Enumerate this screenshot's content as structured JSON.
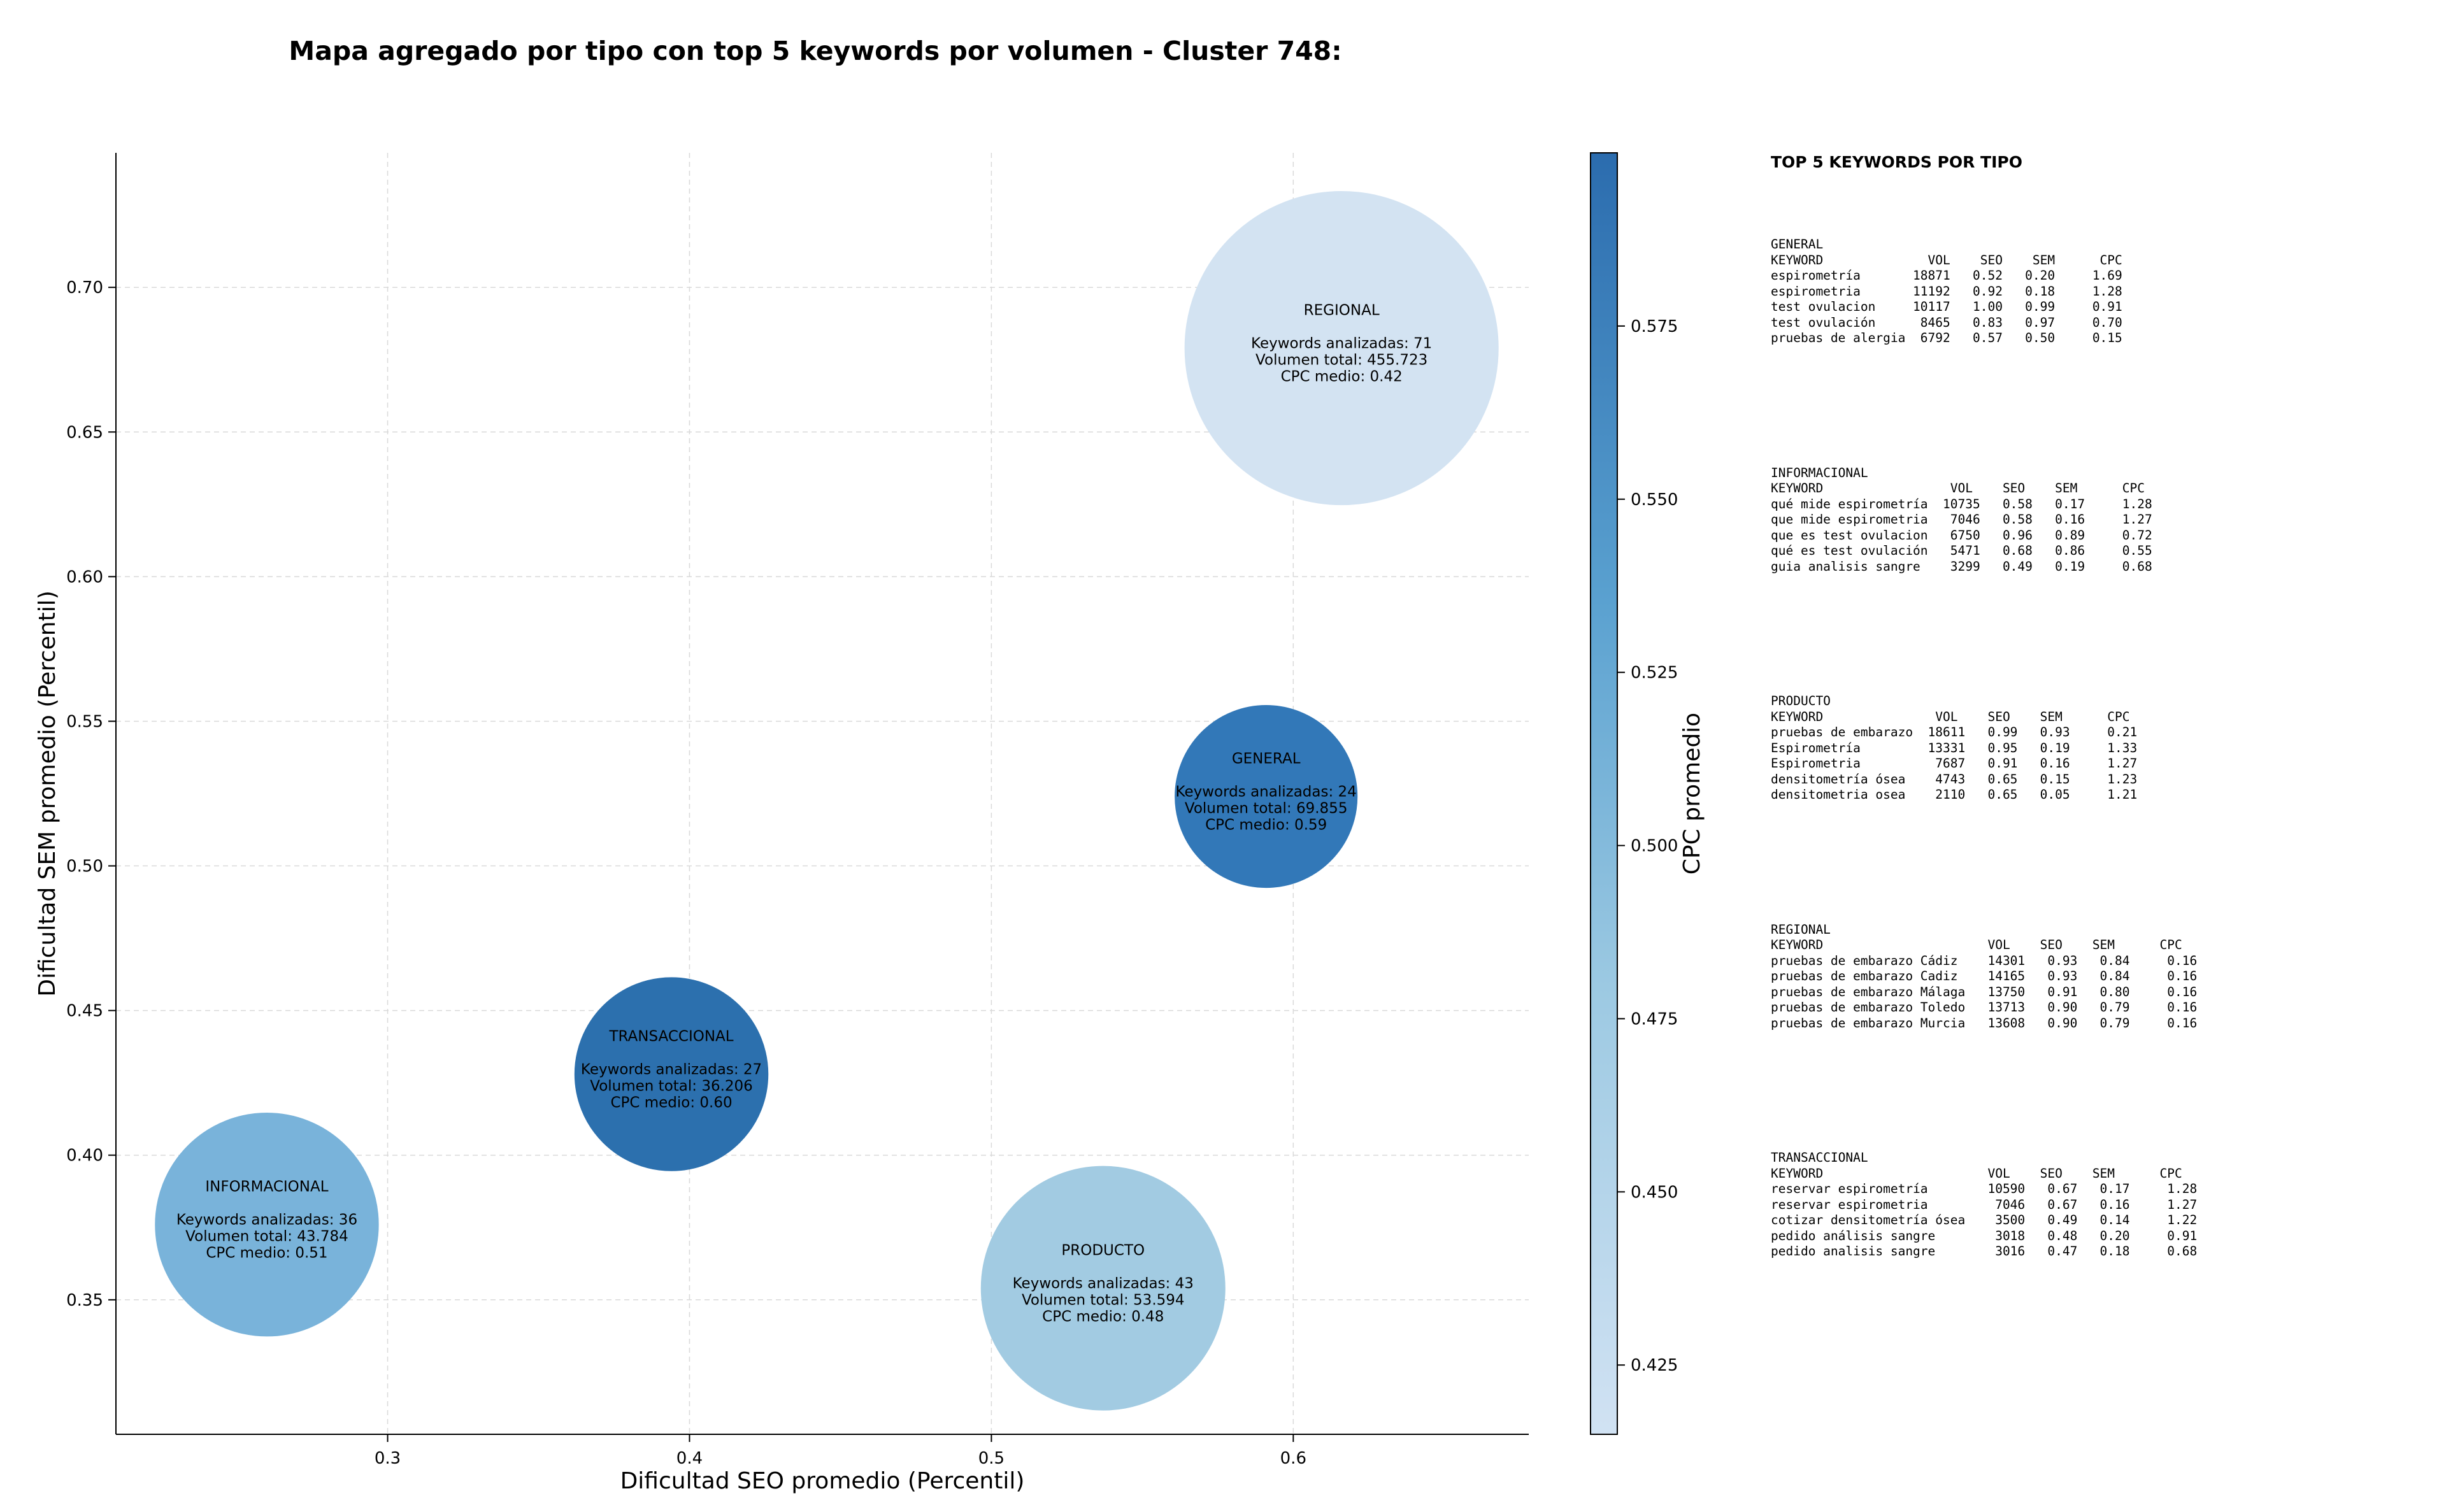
{
  "chart_data": {
    "type": "scatter",
    "title": "Mapa agregado por tipo con top 5 keywords por volumen - Cluster 748:",
    "xlabel": "Dificultad SEO promedio (Percentil)",
    "ylabel": "Dificultad SEM promedio (Percentil)",
    "xlim": [
      0.21,
      0.678
    ],
    "ylim": [
      0.3035,
      0.7465
    ],
    "xticks": [
      0.3,
      0.4,
      0.5,
      0.6
    ],
    "xtick_labels": [
      "0.3",
      "0.4",
      "0.5",
      "0.6"
    ],
    "yticks": [
      0.35,
      0.4,
      0.45,
      0.5,
      0.55,
      0.6,
      0.65,
      0.7
    ],
    "ytick_labels": [
      "0.35",
      "0.40",
      "0.45",
      "0.50",
      "0.55",
      "0.60",
      "0.65",
      "0.70"
    ],
    "grid": true,
    "bubble_size_metric": "Keywords analizadas",
    "color_metric": "CPC medio",
    "colorbar": {
      "label": "CPC promedio",
      "range": [
        0.415,
        0.6
      ],
      "ticks": [
        0.425,
        0.45,
        0.475,
        0.5,
        0.525,
        0.55,
        0.575
      ],
      "tick_labels": [
        "0.425",
        "0.450",
        "0.475",
        "0.500",
        "0.525",
        "0.550",
        "0.575"
      ],
      "colors": [
        "#cfe1f2",
        "#9ac8e1",
        "#5ea3d0",
        "#2c6eb0"
      ]
    },
    "points": [
      {
        "name": "REGIONAL",
        "x": 0.616,
        "y": 0.679,
        "keywords": 71,
        "line1": "Keywords analizadas: 71",
        "line2": "Volumen total: 455.723",
        "line3": "CPC medio: 0.42",
        "cpc": 0.42,
        "color": "#d3e3f2"
      },
      {
        "name": "GENERAL",
        "x": 0.591,
        "y": 0.524,
        "keywords": 24,
        "line1": "Keywords analizadas: 24",
        "line2": "Volumen total: 69.855",
        "line3": "CPC medio: 0.59",
        "cpc": 0.59,
        "color": "#3278b8"
      },
      {
        "name": "TRANSACCIONAL",
        "x": 0.394,
        "y": 0.428,
        "keywords": 27,
        "line1": "Keywords analizadas: 27",
        "line2": "Volumen total: 36.206",
        "line3": "CPC medio: 0.60",
        "cpc": 0.6,
        "color": "#2c70ae"
      },
      {
        "name": "INFORMACIONAL",
        "x": 0.26,
        "y": 0.376,
        "keywords": 36,
        "line1": "Keywords analizadas: 36",
        "line2": "Volumen total: 43.784",
        "line3": "CPC medio: 0.51",
        "cpc": 0.51,
        "color": "#79b3da"
      },
      {
        "name": "PRODUCTO",
        "x": 0.537,
        "y": 0.354,
        "keywords": 43,
        "line1": "Keywords analizadas: 43",
        "line2": "Volumen total: 53.594",
        "line3": "CPC medio: 0.48",
        "cpc": 0.48,
        "color": "#a2cbe2"
      }
    ]
  },
  "side_panel": {
    "title": "TOP 5 KEYWORDS POR TIPO",
    "blocks": [
      {
        "type": "GENERAL",
        "rows": [
          "KEYWORD              VOL    SEO    SEM      CPC",
          "espirometría       18871   0.52   0.20     1.69",
          "espirometria       11192   0.92   0.18     1.28",
          "test ovulacion     10117   1.00   0.99     0.91",
          "test ovulación      8465   0.83   0.97     0.70",
          "pruebas de alergia  6792   0.57   0.50     0.15"
        ]
      },
      {
        "type": "INFORMACIONAL",
        "rows": [
          "KEYWORD                 VOL    SEO    SEM      CPC",
          "qué mide espirometría  10735   0.58   0.17     1.28",
          "que mide espirometria   7046   0.58   0.16     1.27",
          "que es test ovulacion   6750   0.96   0.89     0.72",
          "qué es test ovulación   5471   0.68   0.86     0.55",
          "guia analisis sangre    3299   0.49   0.19     0.68"
        ]
      },
      {
        "type": "PRODUCTO",
        "rows": [
          "KEYWORD               VOL    SEO    SEM      CPC",
          "pruebas de embarazo  18611   0.99   0.93     0.21",
          "Espirometría         13331   0.95   0.19     1.33",
          "Espirometria          7687   0.91   0.16     1.27",
          "densitometría ósea    4743   0.65   0.15     1.23",
          "densitometria osea    2110   0.65   0.05     1.21"
        ]
      },
      {
        "type": "REGIONAL",
        "rows": [
          "KEYWORD                      VOL    SEO    SEM      CPC",
          "pruebas de embarazo Cádiz    14301   0.93   0.84     0.16",
          "pruebas de embarazo Cadiz    14165   0.93   0.84     0.16",
          "pruebas de embarazo Málaga   13750   0.91   0.80     0.16",
          "pruebas de embarazo Toledo   13713   0.90   0.79     0.16",
          "pruebas de embarazo Murcia   13608   0.90   0.79     0.16"
        ]
      },
      {
        "type": "TRANSACCIONAL",
        "rows": [
          "KEYWORD                      VOL    SEO    SEM      CPC",
          "reservar espirometría        10590   0.67   0.17     1.28",
          "reservar espirometria         7046   0.67   0.16     1.27",
          "cotizar densitometría ósea    3500   0.49   0.14     1.22",
          "pedido análisis sangre        3018   0.48   0.20     0.91",
          "pedido analisis sangre        3016   0.47   0.18     0.68"
        ]
      }
    ]
  }
}
